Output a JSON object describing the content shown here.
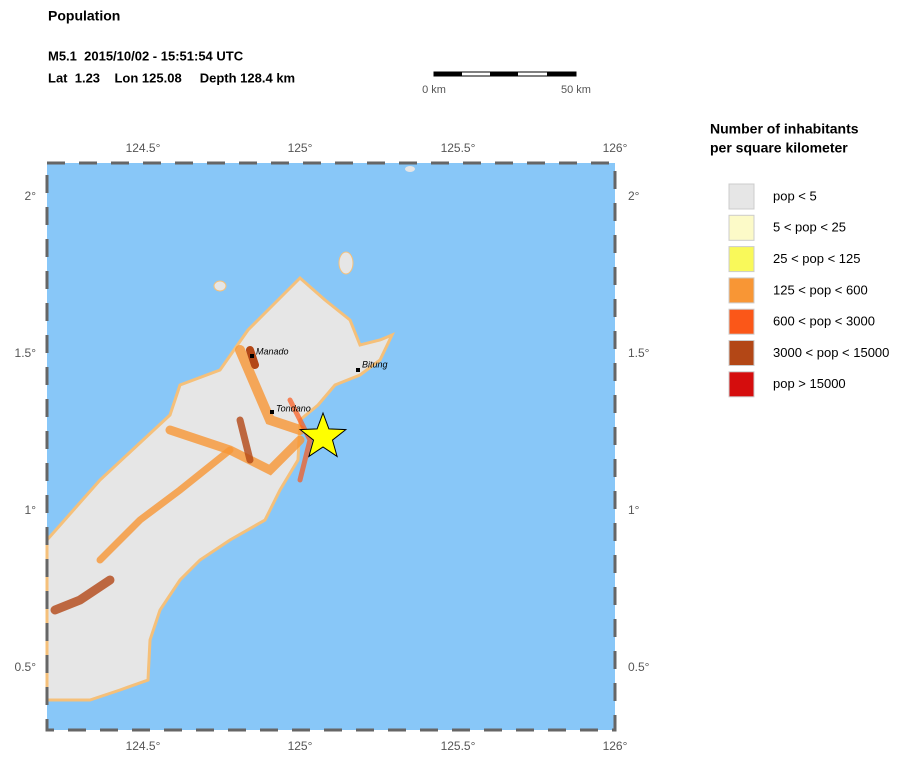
{
  "header": {
    "title": "Population",
    "event": "M5.1  2015/10/02 - 15:51:54 UTC",
    "location": "Lat  1.23    Lon 125.08     Depth 128.4 km"
  },
  "scale_bar": {
    "labels": [
      "0 km",
      "50 km"
    ]
  },
  "map": {
    "x_labels": [
      "124.5°",
      "125°",
      "125.5°",
      "126°"
    ],
    "y_labels": [
      "2°",
      "1.5°",
      "1°",
      "0.5°"
    ],
    "cities": [
      "Manado",
      "Bitung",
      "Tondano"
    ]
  },
  "legend": {
    "title": [
      "Number of inhabitants",
      "per square kilometer"
    ],
    "items": [
      {
        "label": "pop < 5",
        "color": "#e6e6e6"
      },
      {
        "label": "5 < pop < 25",
        "color": "#fcfac8"
      },
      {
        "label": "25 < pop < 125",
        "color": "#f9f95a"
      },
      {
        "label": "125 < pop < 600",
        "color": "#f89635"
      },
      {
        "label": "600 < pop < 3000",
        "color": "#fb5718"
      },
      {
        "label": "3000 < pop < 15000",
        "color": "#b34716"
      },
      {
        "label": "pop > 15000",
        "color": "#d50d0d"
      }
    ]
  }
}
